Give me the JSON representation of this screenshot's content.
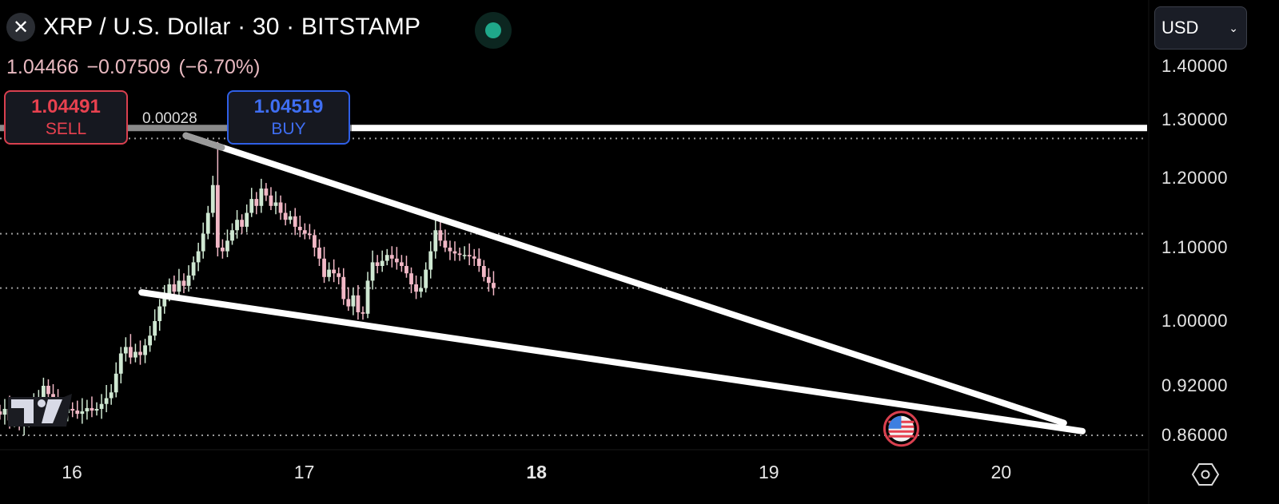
{
  "header": {
    "symbol_icon": "xrp-logo-icon",
    "title": "XRP / U.S. Dollar · 30 · BITSTAMP",
    "market_status_color": "#1fa88a",
    "last_price": "1.04466",
    "change": "−0.07509",
    "change_percent": "(−6.70%)"
  },
  "trade": {
    "sell_price": "1.04491",
    "sell_label": "SELL",
    "spread": "0.00028",
    "buy_price": "1.04519",
    "buy_label": "BUY"
  },
  "currency_select": {
    "value": "USD"
  },
  "chart_data": {
    "type": "candlestick",
    "interval_minutes": 30,
    "y_ticks": [
      "1.40000",
      "1.30000",
      "1.20000",
      "1.10000",
      "1.00000",
      "0.92000",
      "0.86000"
    ],
    "x_ticks": [
      {
        "label": "16",
        "day": 16,
        "bold": false
      },
      {
        "label": "17",
        "day": 17,
        "bold": false
      },
      {
        "label": "18",
        "day": 18,
        "bold": true
      },
      {
        "label": "19",
        "day": 19,
        "bold": false
      },
      {
        "label": "20",
        "day": 20,
        "bold": false
      }
    ],
    "candle_start_day": 15.69,
    "closes": [
      0.885,
      0.892,
      0.878,
      0.884,
      0.872,
      0.88,
      0.885,
      0.895,
      0.905,
      0.92,
      0.91,
      0.9,
      0.893,
      0.887,
      0.892,
      0.89,
      0.886,
      0.889,
      0.893,
      0.89,
      0.892,
      0.898,
      0.905,
      0.912,
      0.935,
      0.96,
      0.968,
      0.955,
      0.962,
      0.958,
      0.97,
      0.982,
      1.0,
      1.02,
      1.035,
      1.05,
      1.04,
      1.055,
      1.048,
      1.062,
      1.08,
      1.095,
      1.12,
      1.15,
      1.19,
      1.1,
      1.095,
      1.11,
      1.125,
      1.14,
      1.13,
      1.15,
      1.17,
      1.16,
      1.185,
      1.175,
      1.16,
      1.165,
      1.15,
      1.14,
      1.145,
      1.13,
      1.125,
      1.12,
      1.118,
      1.1,
      1.085,
      1.06,
      1.07,
      1.065,
      1.06,
      1.03,
      1.02,
      1.035,
      1.012,
      1.01,
      1.055,
      1.08,
      1.075,
      1.082,
      1.09,
      1.085,
      1.08,
      1.075,
      1.065,
      1.05,
      1.04,
      1.045,
      1.07,
      1.095,
      1.125,
      1.11,
      1.1,
      1.095,
      1.092,
      1.09,
      1.09,
      1.088,
      1.085,
      1.075,
      1.06,
      1.052,
      1.045
    ],
    "high_overrides": [
      {
        "index": 45,
        "high": 1.262
      },
      {
        "index": 9,
        "high": 0.93
      },
      {
        "index": 90,
        "high": 1.14
      }
    ],
    "up_color": "#cfe8d2",
    "down_color": "#f2b8c6",
    "horizontal_lines": [
      {
        "price": 1.286,
        "style": "solid",
        "color": "#ffffff"
      },
      {
        "price": 1.268,
        "style": "dotted"
      },
      {
        "price": 1.12,
        "style": "dotted"
      },
      {
        "price": 1.045,
        "style": "dotted"
      },
      {
        "price": 0.86,
        "style": "dotted"
      }
    ],
    "trendlines": [
      {
        "name": "upper",
        "from": {
          "day": 16.49,
          "price": 1.273
        },
        "to": {
          "day": 20.27,
          "price": 0.875
        }
      },
      {
        "name": "lower",
        "from": {
          "day": 16.3,
          "price": 1.039
        },
        "to": {
          "day": 20.35,
          "price": 0.865
        }
      }
    ],
    "events": [
      {
        "day": 19.57,
        "price": 0.868,
        "icon": "us-flag-icon",
        "color": "#d9404f"
      }
    ]
  },
  "footer": {
    "settings_icon": "settings-hexagon-icon"
  }
}
